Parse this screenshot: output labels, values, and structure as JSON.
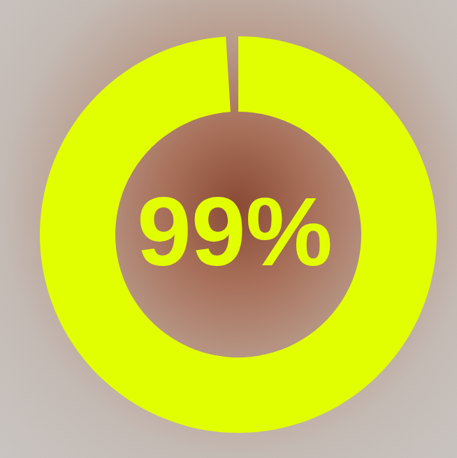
{
  "chart_data": {
    "type": "pie",
    "values": [
      99,
      1
    ],
    "value_labels": [
      "99%",
      null
    ],
    "colors": [
      "#e2ff00",
      "none"
    ],
    "data_labels": true
  }
}
